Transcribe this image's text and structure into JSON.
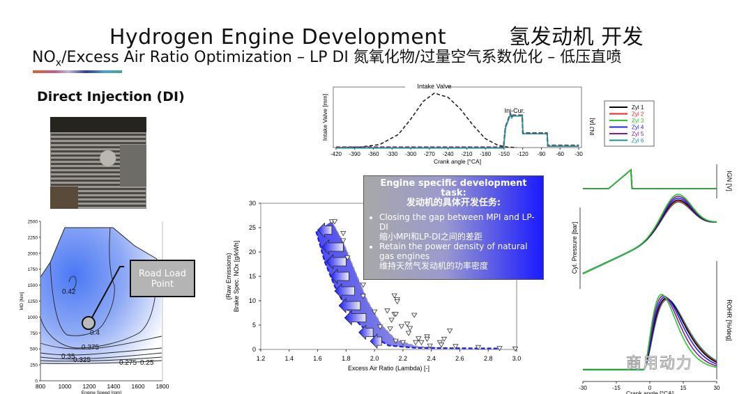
{
  "header": {
    "title_en": "Hydrogen Engine  Development",
    "title_cn": "氢发动机  开发",
    "subtitle_prefix": "NO",
    "subtitle_sub": "x",
    "subtitle_rest": "/Excess Air Ratio Optimization – LP DI 氮氧化物/过量空气系数优化 – 低压直喷"
  },
  "section_label": "Direct Injection (DI)",
  "task_box": {
    "title_en": "Engine specific development task:",
    "title_cn": "发动机的具体开发任务:",
    "bullets": [
      {
        "en": "Closing the gap between MPI and LP-DI",
        "cn": "缩小MPI和LP-DI之间的差距"
      },
      {
        "en": "Retain the power density of natural gas engines",
        "cn": "维持天然气发动机的功率密度"
      }
    ]
  },
  "road_load_label": "Road Load Point",
  "watermark": "商用动力",
  "colors": {
    "accent_blue": "#1a1aff",
    "cyl": [
      "#000000",
      "#ff2020",
      "#22cc22",
      "#2020ff",
      "#8a1a9a",
      "#1a9090"
    ]
  },
  "chart_data": [
    {
      "id": "valve_injection",
      "type": "line",
      "xlabel": "Crank angle [°CA]",
      "ylabel_left": "Intake Valve [mm]",
      "ylabel_right": "INJ [A]",
      "xlim": [
        -420,
        -30
      ],
      "xticks": [
        -420,
        -390,
        -360,
        -330,
        -300,
        -270,
        -240,
        -210,
        -180,
        -150,
        -120,
        -90,
        -60,
        -30
      ],
      "annotations": [
        "Intake Valve",
        "Inj-Cur."
      ],
      "legend": {
        "placement": "right",
        "entries": [
          "Zyl 1",
          "Zyl 2",
          "Zyl 3",
          "Zyl 4",
          "Zyl 5",
          "Zyl 6"
        ]
      },
      "intake_valve_relative": {
        "x": [
          -420,
          -380,
          -350,
          -320,
          -300,
          -280,
          -262,
          -240,
          -220,
          -200,
          -180,
          -160,
          -145,
          -130
        ],
        "y": [
          0,
          0.01,
          0.05,
          0.22,
          0.48,
          0.78,
          0.92,
          0.85,
          0.65,
          0.38,
          0.15,
          0.04,
          0.01,
          0
        ]
      },
      "injection_current_relative": {
        "x": [
          -420,
          -151,
          -148,
          -140,
          -138,
          -136,
          -121,
          -120,
          -81,
          -80,
          -30
        ],
        "y": [
          0.01,
          0.01,
          0.35,
          0.58,
          0.52,
          0.55,
          0.55,
          0.25,
          0.25,
          0.04,
          0.04
        ]
      }
    },
    {
      "id": "nox_lambda",
      "type": "scatter",
      "xlabel": "Excess Air Ratio (Lambda) [-]",
      "ylabel": "(Raw Emissions) Brake Spec. NOx [g/kWh]",
      "xlim": [
        1.2,
        3.0
      ],
      "ylim": [
        0,
        30
      ],
      "xticks": [
        "1.2",
        "1.4",
        "1.6",
        "1.8",
        "2.0",
        "2.2",
        "2.4",
        "2.6",
        "2.8",
        "3.0"
      ],
      "yticks": [
        "0",
        "5",
        "10",
        "15",
        "20",
        "25",
        "30"
      ],
      "points": [
        [
          1.7,
          26.2
        ],
        [
          1.72,
          26.2
        ],
        [
          1.78,
          23.8
        ],
        [
          1.78,
          22.3
        ],
        [
          1.81,
          18.8
        ],
        [
          1.92,
          13.2
        ],
        [
          1.92,
          10.9
        ],
        [
          2.0,
          7.7
        ],
        [
          2.04,
          4.6
        ],
        [
          2.14,
          11.0
        ],
        [
          2.16,
          10.2
        ],
        [
          2.16,
          9.8
        ],
        [
          2.09,
          7.9
        ],
        [
          2.14,
          7.2
        ],
        [
          2.15,
          7.2
        ],
        [
          2.12,
          6.0
        ],
        [
          2.11,
          4.2
        ],
        [
          2.19,
          4.7
        ],
        [
          2.23,
          5.2
        ],
        [
          2.25,
          4.3
        ],
        [
          2.24,
          3.3
        ],
        [
          2.28,
          7.0
        ],
        [
          2.31,
          2.2
        ],
        [
          2.29,
          1.4
        ],
        [
          2.33,
          1.4
        ],
        [
          2.37,
          2.6
        ],
        [
          2.37,
          2.1
        ],
        [
          2.53,
          3.8
        ],
        [
          2.49,
          2.1
        ],
        [
          2.46,
          1.4
        ],
        [
          2.47,
          0.9
        ],
        [
          2.39,
          0.7
        ],
        [
          2.15,
          1.7
        ],
        [
          2.2,
          1.4
        ],
        [
          2.57,
          0.6
        ],
        [
          2.73,
          0.4
        ],
        [
          2.88,
          0.2
        ],
        [
          2.99,
          0.1
        ]
      ],
      "lp_di_target_boundary": [
        [
          1.59,
          24.2
        ],
        [
          1.65,
          18
        ],
        [
          1.72,
          13
        ],
        [
          1.8,
          8.5
        ],
        [
          1.9,
          5
        ],
        [
          2.0,
          2.5
        ],
        [
          2.1,
          0.8
        ],
        [
          2.3,
          0.3
        ],
        [
          2.88,
          0.2
        ]
      ],
      "mpi_boundary": [
        [
          1.7,
          26.3
        ],
        [
          1.78,
          22
        ],
        [
          1.85,
          17
        ],
        [
          1.95,
          10
        ],
        [
          2.05,
          5
        ],
        [
          2.15,
          2
        ],
        [
          2.3,
          0.6
        ],
        [
          2.5,
          0.3
        ]
      ]
    },
    {
      "id": "efficiency_map",
      "type": "heatmap",
      "xlabel": "Engine Speed [rpm]",
      "ylabel": "MD [Nm]",
      "xlim": [
        800,
        1800
      ],
      "ylim": [
        0,
        2500
      ],
      "xticks": [
        "800",
        "1000",
        "1200",
        "1400",
        "1600",
        "1800"
      ],
      "yticks": [
        "0",
        "250",
        "500",
        "750",
        "1000",
        "1250",
        "1500",
        "1750",
        "2000",
        "2250",
        "2500"
      ],
      "contour_labels": [
        "0.42",
        "0.4",
        "0.375",
        "0.35",
        "0.325",
        "0.275",
        "0.25"
      ],
      "road_load_point": {
        "speed_rpm": 1200,
        "torque_nm": 900
      }
    },
    {
      "id": "combustion_traces",
      "type": "line",
      "xlabel": "Crank angle [°CA]",
      "xlim": [
        -30,
        30
      ],
      "xticks": [
        "-30",
        "-15",
        "0",
        "15",
        "30"
      ],
      "panels": [
        "IGN [V]",
        "Cyl. Pressure [bar]",
        "ROHR [%/deg]"
      ]
    }
  ]
}
